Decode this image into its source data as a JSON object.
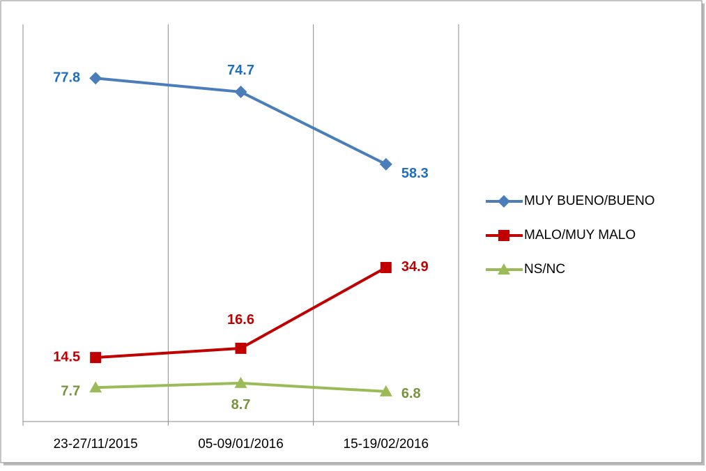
{
  "chart_data": {
    "type": "line",
    "categories": [
      "23-27/11/2015",
      "05-09/01/2016",
      "15-19/02/2016"
    ],
    "series": [
      {
        "name": "MUY BUENO/BUENO",
        "color": "#4a7ebb",
        "label_color": "#1f6fbf",
        "marker": "diamond",
        "values": [
          77.8,
          74.7,
          58.3
        ]
      },
      {
        "name": "MALO/MUY MALO",
        "color": "#c00000",
        "label_color": "#c00000",
        "marker": "square",
        "values": [
          14.5,
          16.6,
          34.9
        ]
      },
      {
        "name": "NS/NC",
        "color": "#9bbb59",
        "label_color": "#77933c",
        "marker": "triangle",
        "values": [
          7.7,
          8.7,
          6.8
        ]
      }
    ],
    "ylim": [
      0,
      90
    ],
    "legend": "right"
  }
}
